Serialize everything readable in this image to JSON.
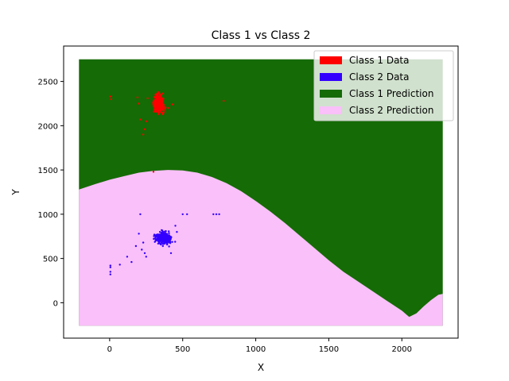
{
  "chart_data": {
    "type": "scatter",
    "title": "Class 1 vs Class 2",
    "xlabel": "X",
    "ylabel": "Y",
    "xlim": [
      -315,
      2385
    ],
    "ylim": [
      -400,
      2900
    ],
    "x_ticks": [
      0,
      500,
      1000,
      1500,
      2000
    ],
    "y_ticks": [
      0,
      500,
      1000,
      1500,
      2000,
      2500
    ],
    "grid": false,
    "legend_position": "top-right",
    "legend": [
      {
        "label": "Class 1 Data",
        "color": "#ff0000"
      },
      {
        "label": "Class 2 Data",
        "color": "#3300ff"
      },
      {
        "label": "Class 1 Prediction",
        "color": "#156b05"
      },
      {
        "label": "Class 2 Prediction",
        "color": "#f9c0f9"
      }
    ],
    "prediction_regions": {
      "x_range": [
        -210,
        2280
      ],
      "y_range": [
        -260,
        2750
      ],
      "boundary": [
        [
          -210,
          1280
        ],
        [
          -100,
          1340
        ],
        [
          0,
          1390
        ],
        [
          100,
          1430
        ],
        [
          200,
          1470
        ],
        [
          300,
          1490
        ],
        [
          400,
          1500
        ],
        [
          500,
          1495
        ],
        [
          600,
          1470
        ],
        [
          700,
          1420
        ],
        [
          800,
          1350
        ],
        [
          900,
          1260
        ],
        [
          1000,
          1150
        ],
        [
          1100,
          1030
        ],
        [
          1200,
          900
        ],
        [
          1300,
          760
        ],
        [
          1400,
          620
        ],
        [
          1500,
          480
        ],
        [
          1600,
          350
        ],
        [
          1700,
          240
        ],
        [
          1800,
          130
        ],
        [
          1900,
          20
        ],
        [
          2000,
          -90
        ],
        [
          2050,
          -160
        ],
        [
          2100,
          -120
        ],
        [
          2150,
          -40
        ],
        [
          2200,
          30
        ],
        [
          2250,
          90
        ],
        [
          2280,
          100
        ]
      ]
    },
    "series": [
      {
        "name": "Class 1 Data",
        "color": "#ff0000",
        "cluster": {
          "center": [
            335,
            2250
          ],
          "spread": [
            35,
            95
          ],
          "count": 380
        },
        "outliers": [
          [
            5,
            2330
          ],
          [
            10,
            2300
          ],
          [
            780,
            2280
          ],
          [
            240,
            1960
          ],
          [
            210,
            2070
          ],
          [
            230,
            1900
          ],
          [
            300,
            1480
          ],
          [
            400,
            2200
          ],
          [
            430,
            2240
          ],
          [
            200,
            2250
          ],
          [
            190,
            2320
          ],
          [
            260,
            2310
          ],
          [
            250,
            2050
          ]
        ]
      },
      {
        "name": "Class 2 Data",
        "color": "#3300ff",
        "cluster": {
          "center": [
            370,
            730
          ],
          "spread": [
            50,
            60
          ],
          "count": 420
        },
        "outliers": [
          [
            5,
            420
          ],
          [
            5,
            400
          ],
          [
            5,
            350
          ],
          [
            5,
            320
          ],
          [
            70,
            430
          ],
          [
            120,
            520
          ],
          [
            150,
            460
          ],
          [
            210,
            1000
          ],
          [
            500,
            1000
          ],
          [
            530,
            1000
          ],
          [
            710,
            1000
          ],
          [
            730,
            1000
          ],
          [
            750,
            1000
          ],
          [
            200,
            780
          ],
          [
            230,
            680
          ],
          [
            220,
            600
          ],
          [
            240,
            560
          ],
          [
            250,
            520
          ],
          [
            180,
            640
          ],
          [
            450,
            870
          ],
          [
            460,
            800
          ],
          [
            420,
            560
          ]
        ]
      }
    ]
  }
}
